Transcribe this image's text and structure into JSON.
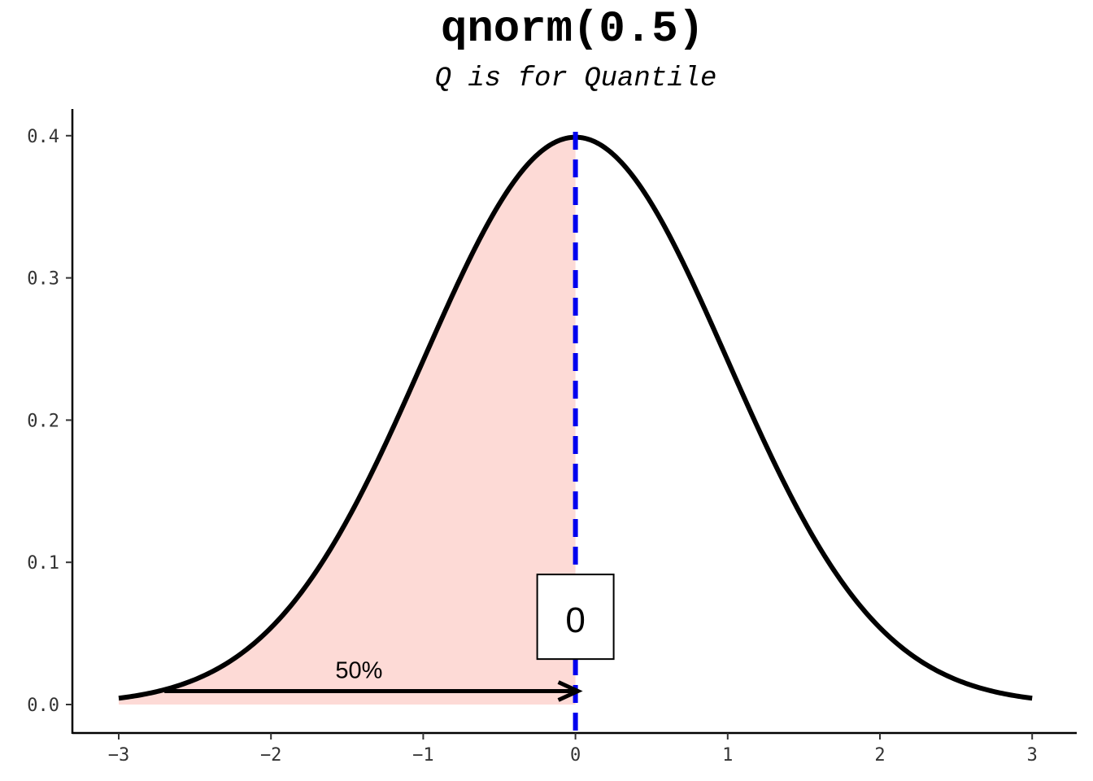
{
  "chart_data": {
    "type": "area",
    "title": "qnorm(0.5)",
    "subtitle": "Q is for Quantile",
    "xlabel": "",
    "ylabel": "",
    "xlim": [
      -3.3,
      3.3
    ],
    "ylim": [
      -0.02,
      0.42
    ],
    "x_ticks": [
      -3,
      -2,
      -1,
      0,
      1,
      2,
      3
    ],
    "x_tick_labels": [
      "−3",
      "−2",
      "−1",
      "0",
      "1",
      "2",
      "3"
    ],
    "y_ticks": [
      0.0,
      0.1,
      0.2,
      0.3,
      0.4
    ],
    "y_tick_labels": [
      "0.0",
      "0.1",
      "0.2",
      "0.3",
      "0.4"
    ],
    "curve": {
      "distribution": "standard normal density",
      "mean": 0,
      "sd": 1,
      "x_range": [
        -3,
        3
      ]
    },
    "shaded_region": {
      "x_from": -3,
      "x_to": 0,
      "color": "#fddad6"
    },
    "quantile_line": {
      "x": 0,
      "color": "#0000ee",
      "style": "dashed"
    },
    "arrow": {
      "x_from": -2.7,
      "x_to": 0,
      "y": 0.01,
      "label": "50%"
    },
    "label_box": {
      "text": "0",
      "x": 0,
      "y": 0.06
    },
    "grid": false,
    "legend": "none"
  }
}
